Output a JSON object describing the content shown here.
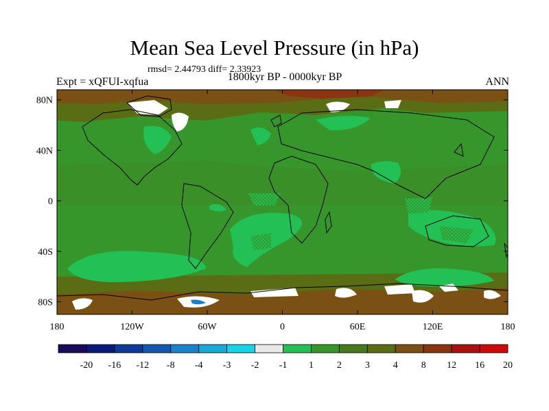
{
  "title": "Mean Sea Level Pressure (in hPa)",
  "stats_text": "rmsd= 2.44793 diff= 2.33923",
  "period_text": "1800kyr BP - 0000kyr BP",
  "experiment_text": "Expt = xQFUI-xqfua",
  "season_text": "ANN",
  "lat_ticks": [
    {
      "label": "80N",
      "lat": 80
    },
    {
      "label": "40N",
      "lat": 40
    },
    {
      "label": "0",
      "lat": 0
    },
    {
      "label": "40S",
      "lat": -40
    },
    {
      "label": "80S",
      "lat": -80
    }
  ],
  "lon_ticks": [
    {
      "label": "180",
      "lon": -180
    },
    {
      "label": "120W",
      "lon": -120
    },
    {
      "label": "60W",
      "lon": -60
    },
    {
      "label": "0",
      "lon": 0
    },
    {
      "label": "60E",
      "lon": 60
    },
    {
      "label": "120E",
      "lon": 120
    },
    {
      "label": "180",
      "lon": 180
    }
  ],
  "colorbar": {
    "colors": [
      "#1a0a5c",
      "#0a1a7a",
      "#0f3a9a",
      "#1457b0",
      "#1a82c8",
      "#19a9d8",
      "#17d3e8",
      "#e8e8e8",
      "#22c055",
      "#36962c",
      "#467a1c",
      "#5a6c14",
      "#7a5014",
      "#8a3410",
      "#aa1010",
      "#cc0a0a"
    ],
    "labels": [
      "-20",
      "-16",
      "-12",
      "-8",
      "-4",
      "-3",
      "-2",
      "-1",
      "1",
      "2",
      "3",
      "4",
      "8",
      "12",
      "16",
      "20"
    ]
  }
}
